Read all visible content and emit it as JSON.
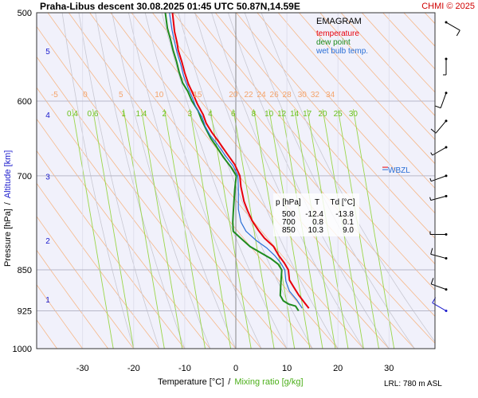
{
  "header": {
    "title": "Praha-Libus   descent   30.08.2025 01:45 UTC  50.87N,14.59E",
    "credit": "CHMI © 2025"
  },
  "legend": {
    "title": "EMAGRAM",
    "items": [
      {
        "label": "temperature",
        "color": "#e8000b"
      },
      {
        "label": "dew point",
        "color": "#1e8c1e"
      },
      {
        "label": "wet bulb temp.",
        "color": "#2a6fd6"
      }
    ]
  },
  "axes": {
    "ylabel_left": "Pressure [hPa]",
    "ylabel_sep": "/",
    "ylabel_right": "Altitude [km]",
    "xlabel_left": "Temperature [°C]",
    "xlabel_sep": "/",
    "xlabel_right": "Mixing ratio [g/kg]",
    "footer": "LRL: 780 m ASL",
    "wbzl_label": "WBZL"
  },
  "table": {
    "headers": [
      "p [hPa]",
      "T",
      "Td [°C]"
    ],
    "rows": [
      [
        "500",
        "-12.4",
        "-13.8"
      ],
      [
        "700",
        "0.8",
        "0.1"
      ],
      [
        "850",
        "10.3",
        "9.0"
      ]
    ]
  },
  "chart_data": {
    "type": "line",
    "title": "Praha-Libus   descent   30.08.2025 01:45 UTC  50.87N,14.59E",
    "xlabel": "Temperature [°C]  /  Mixing ratio [g/kg]",
    "ylabel": "Pressure [hPa]  /  Altitude [km]",
    "x_ticks": [
      -30,
      -20,
      -10,
      0,
      10,
      20,
      30
    ],
    "xlim": [
      -39,
      39
    ],
    "p_ticks": [
      500,
      600,
      700,
      850,
      925,
      1000
    ],
    "ylim": [
      1000,
      500
    ],
    "y_scale": "log",
    "alt_ticks": [
      {
        "km": "1",
        "p": 903
      },
      {
        "km": "2",
        "p": 800
      },
      {
        "km": "3",
        "p": 701
      },
      {
        "km": "4",
        "p": 617
      },
      {
        "km": "5",
        "p": 541
      }
    ],
    "dry_adiabat_labels": [
      "-5",
      "0",
      "5",
      "10",
      "15",
      "20",
      "22",
      "24",
      "26",
      "28",
      "30",
      "32",
      "34"
    ],
    "dry_adiabat_label_x": [
      -35.5,
      -29.5,
      -22.5,
      -15,
      -7.5,
      -0.5,
      2.5,
      5,
      7.5,
      10,
      13,
      15.5,
      18.5
    ],
    "mixing_ratio_labels": [
      "0.4",
      "0.6",
      "1",
      "1.4",
      "2",
      "3",
      "4",
      "6",
      "8",
      "10",
      "12",
      "14",
      "17",
      "20",
      "25",
      "30"
    ],
    "mixing_ratio_label_x": [
      -32,
      -28,
      -22,
      -18.5,
      -14,
      -9,
      -5,
      -0.5,
      3.5,
      6.5,
      9,
      11.5,
      14,
      17,
      20,
      23
    ],
    "wbzl_p": 690,
    "series": [
      {
        "name": "temperature",
        "color": "#e8000b",
        "points": [
          [
            14.3,
            920
          ],
          [
            13.5,
            910
          ],
          [
            12.3,
            895
          ],
          [
            11.3,
            880
          ],
          [
            10.5,
            868
          ],
          [
            10.3,
            850
          ],
          [
            9.5,
            838
          ],
          [
            8.4,
            825
          ],
          [
            7.4,
            810
          ],
          [
            5.6,
            796
          ],
          [
            4.4,
            783
          ],
          [
            3.2,
            768
          ],
          [
            2.3,
            752
          ],
          [
            1.6,
            738
          ],
          [
            1.0,
            716
          ],
          [
            0.8,
            700
          ],
          [
            -0.2,
            684
          ],
          [
            -1.8,
            668
          ],
          [
            -3.4,
            652
          ],
          [
            -4.7,
            640
          ],
          [
            -5.8,
            628
          ],
          [
            -6.4,
            617
          ],
          [
            -7.5,
            604
          ],
          [
            -8.4,
            591
          ],
          [
            -9.3,
            579
          ],
          [
            -10.0,
            566
          ],
          [
            -10.6,
            553
          ],
          [
            -11.3,
            540
          ],
          [
            -11.5,
            532
          ],
          [
            -12.0,
            520
          ],
          [
            -12.4,
            500
          ]
        ]
      },
      {
        "name": "dew point",
        "color": "#1e8c1e",
        "points": [
          [
            12.3,
            925
          ],
          [
            11.7,
            916
          ],
          [
            10.3,
            912
          ],
          [
            9.3,
            906
          ],
          [
            8.7,
            896
          ],
          [
            8.8,
            877
          ],
          [
            9.0,
            850
          ],
          [
            8.3,
            840
          ],
          [
            6.8,
            830
          ],
          [
            4.8,
            820
          ],
          [
            2.8,
            810
          ],
          [
            0.8,
            795
          ],
          [
            -0.5,
            785
          ],
          [
            -0.6,
            770
          ],
          [
            -0.5,
            755
          ],
          [
            -0.2,
            720
          ],
          [
            0.1,
            700
          ],
          [
            -0.9,
            688
          ],
          [
            -2.4,
            674
          ],
          [
            -3.7,
            660
          ],
          [
            -4.9,
            648
          ],
          [
            -5.8,
            636
          ],
          [
            -6.7,
            624
          ],
          [
            -7.4,
            612
          ],
          [
            -8.6,
            600
          ],
          [
            -9.4,
            588
          ],
          [
            -10.4,
            578
          ],
          [
            -11.1,
            565
          ],
          [
            -11.6,
            553
          ],
          [
            -12.3,
            540
          ],
          [
            -12.8,
            528
          ],
          [
            -13.4,
            516
          ],
          [
            -13.8,
            500
          ]
        ]
      },
      {
        "name": "wet bulb temp.",
        "color": "#2a6fd6",
        "points": [
          [
            13.0,
            920
          ],
          [
            12.0,
            905
          ],
          [
            10.5,
            888
          ],
          [
            9.8,
            870
          ],
          [
            9.6,
            850
          ],
          [
            8.8,
            838
          ],
          [
            7.6,
            825
          ],
          [
            6.0,
            812
          ],
          [
            4.0,
            800
          ],
          [
            2.0,
            785
          ],
          [
            1.0,
            770
          ],
          [
            0.5,
            750
          ],
          [
            0.5,
            720
          ],
          [
            0.4,
            700
          ],
          [
            -0.5,
            686
          ],
          [
            -2.0,
            672
          ],
          [
            -3.6,
            656
          ],
          [
            -5.0,
            644
          ],
          [
            -6.0,
            632
          ],
          [
            -6.6,
            620
          ],
          [
            -7.8,
            608
          ],
          [
            -8.5,
            596
          ],
          [
            -9.4,
            583
          ],
          [
            -10.2,
            570
          ],
          [
            -10.8,
            556
          ],
          [
            -11.5,
            543
          ],
          [
            -12.0,
            531
          ],
          [
            -12.5,
            518
          ],
          [
            -13.0,
            500
          ]
        ]
      }
    ],
    "wind_barbs": [
      {
        "p": 510,
        "dir": 120,
        "speed": 10
      },
      {
        "p": 550,
        "dir": 180,
        "speed": 5
      },
      {
        "p": 590,
        "dir": 200,
        "speed": 10
      },
      {
        "p": 625,
        "dir": 220,
        "speed": 10
      },
      {
        "p": 660,
        "dir": 240,
        "speed": 5
      },
      {
        "p": 700,
        "dir": 250,
        "speed": 5
      },
      {
        "p": 730,
        "dir": 255,
        "speed": 5
      },
      {
        "p": 790,
        "dir": 270,
        "speed": 5
      },
      {
        "p": 830,
        "dir": 285,
        "speed": 10
      },
      {
        "p": 885,
        "dir": 290,
        "speed": 10
      },
      {
        "p": 925,
        "dir": 300,
        "speed": 10
      }
    ]
  }
}
